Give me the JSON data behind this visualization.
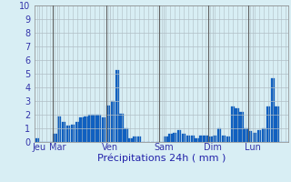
{
  "xlabel": "Précipitations 24h ( mm )",
  "ylim": [
    0,
    10
  ],
  "background_color": "#d8eef4",
  "plot_bg_color": "#d8eef4",
  "bar_color": "#1060c0",
  "grid_color": "#b0bec5",
  "vline_color": "#606060",
  "day_labels": [
    "Jeu",
    "Mar",
    "Ven",
    "Sam",
    "Dim",
    "Lun"
  ],
  "values": [
    0.3,
    0.0,
    0.0,
    0.0,
    0.6,
    1.9,
    1.5,
    1.2,
    1.3,
    1.5,
    1.8,
    1.9,
    2.0,
    2.0,
    2.0,
    1.8,
    2.7,
    3.0,
    5.3,
    2.1,
    1.0,
    0.3,
    0.4,
    0.4,
    0.0,
    0.0,
    0.0,
    0.0,
    0.0,
    0.4,
    0.6,
    0.7,
    0.9,
    0.6,
    0.5,
    0.5,
    0.3,
    0.5,
    0.5,
    0.4,
    0.5,
    1.0,
    0.5,
    0.4,
    2.6,
    2.5,
    2.2,
    1.0,
    0.8,
    0.7,
    0.9,
    1.0,
    2.6,
    4.7,
    2.6,
    0.0,
    0.0
  ],
  "tick_fontsize": 7,
  "label_fontsize": 8,
  "ytick_values": [
    0,
    1,
    2,
    3,
    4,
    5,
    6,
    7,
    8,
    9,
    10
  ]
}
